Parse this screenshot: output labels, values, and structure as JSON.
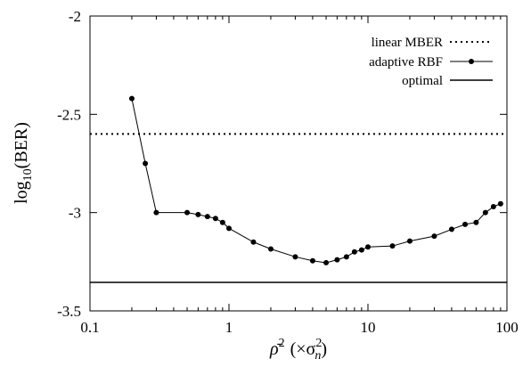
{
  "chart_data": {
    "type": "line",
    "xscale": "log",
    "xlim": [
      0.1,
      100
    ],
    "ylim": [
      -3.5,
      -2
    ],
    "xticks": [
      0.1,
      1,
      10,
      100
    ],
    "xtick_labels": [
      "0.1",
      "1",
      "10",
      "100"
    ],
    "yticks": [
      -3.5,
      -3,
      -2.5,
      -2
    ],
    "ytick_labels": [
      "-3.5",
      "-3",
      "-2.5",
      "-2"
    ],
    "ylabel": "log10(BER)",
    "xlabel_parts": {
      "main": "ρ̄",
      "sup": "2",
      "paren_open": "(×σ",
      "sub": "n",
      "paren_close": ")"
    },
    "legend_position": "top-right",
    "series": [
      {
        "name": "linear MBER",
        "style": "dotted",
        "x": [
          0.1,
          100
        ],
        "y": [
          -2.6,
          -2.6
        ]
      },
      {
        "name": "adaptive RBF",
        "style": "line-points",
        "x": [
          0.2,
          0.25,
          0.3,
          0.5,
          0.6,
          0.7,
          0.8,
          0.9,
          1,
          1.5,
          2,
          3,
          4,
          5,
          6,
          7,
          8,
          9,
          10,
          15,
          20,
          30,
          40,
          50,
          60,
          70,
          80,
          90
        ],
        "y": [
          -2.42,
          -2.75,
          -3.0,
          -3.0,
          -3.01,
          -3.02,
          -3.03,
          -3.05,
          -3.08,
          -3.15,
          -3.185,
          -3.225,
          -3.245,
          -3.255,
          -3.24,
          -3.225,
          -3.2,
          -3.19,
          -3.175,
          -3.17,
          -3.145,
          -3.12,
          -3.085,
          -3.06,
          -3.05,
          -3.0,
          -2.97,
          -2.955
        ]
      },
      {
        "name": "optimal",
        "style": "solid",
        "x": [
          0.1,
          100
        ],
        "y": [
          -3.355,
          -3.355
        ]
      }
    ]
  }
}
